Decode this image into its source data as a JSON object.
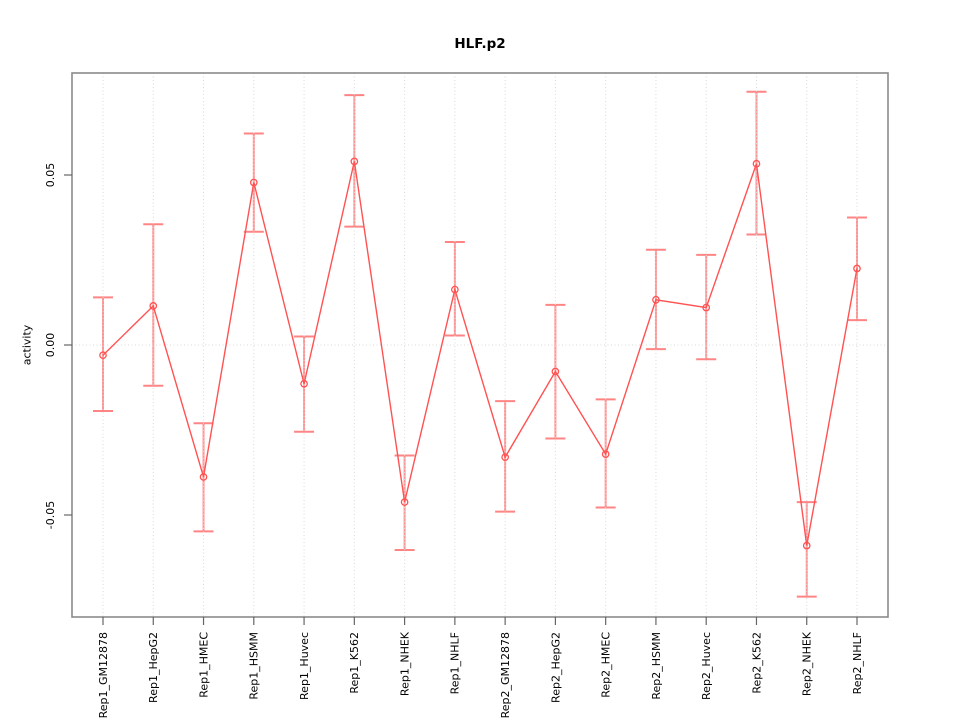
{
  "chart_data": {
    "type": "line",
    "title": "HLF.p2",
    "xlabel": "",
    "ylabel": "activity",
    "legend": "none",
    "categories": [
      "Rep1_GM12878",
      "Rep1_HepG2",
      "Rep1_HMEC",
      "Rep1_HSMM",
      "Rep1_Huvec",
      "Rep1_K562",
      "Rep1_NHEK",
      "Rep1_NHLF",
      "Rep2_GM12878",
      "Rep2_HepG2",
      "Rep2_HMEC",
      "Rep2_HSMM",
      "Rep2_Huvec",
      "Rep2_K562",
      "Rep2_NHEK",
      "Rep2_NHLF"
    ],
    "series": [
      {
        "name": "activity",
        "values": [
          -0.003,
          0.0115,
          -0.0388,
          0.0478,
          -0.0114,
          0.054,
          -0.0462,
          0.0163,
          -0.033,
          -0.0078,
          -0.0321,
          0.0133,
          0.011,
          0.0533,
          -0.059,
          0.0225
        ],
        "error_high": [
          0.014,
          0.0355,
          -0.023,
          0.0622,
          0.0025,
          0.0735,
          -0.0325,
          0.0303,
          -0.0165,
          0.0118,
          -0.016,
          0.028,
          0.0265,
          0.0745,
          -0.0462,
          0.0375
        ],
        "error_low": [
          -0.0194,
          -0.012,
          -0.0548,
          0.0333,
          -0.0255,
          0.0348,
          -0.0603,
          0.0028,
          -0.049,
          -0.0275,
          -0.0478,
          -0.0012,
          -0.0042,
          0.0325,
          -0.074,
          0.0073
        ]
      }
    ],
    "yticks": [
      {
        "value": -0.05,
        "label": "-0.05"
      },
      {
        "value": 0.0,
        "label": "0.00"
      },
      {
        "value": 0.05,
        "label": "0.05"
      }
    ],
    "ylim": [
      -0.08,
      0.08
    ],
    "grid": {
      "vertical_dotted_per_category": true,
      "horizontal_dotted_at_zero": true
    },
    "marker": "open-circle",
    "colors": {
      "line": "#ff5252",
      "point_stroke": "#ff5252",
      "point_fill": "#ffffff",
      "error_bar": "#ff9494",
      "error_cap": "#ff8585",
      "grid": "#d9d9d9",
      "box": "#8a8a8a",
      "tick": "#666666",
      "text": "#000000"
    }
  }
}
